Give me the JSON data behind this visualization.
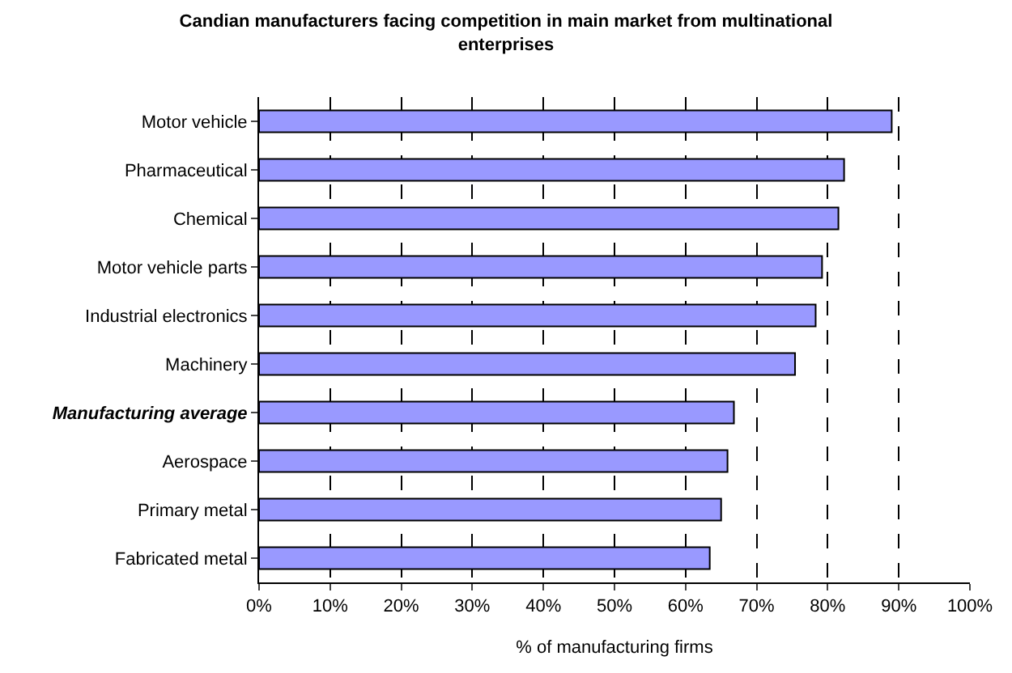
{
  "chart_data": {
    "type": "bar",
    "orientation": "horizontal",
    "title": "Candian manufacturers facing competition in main market from multinational enterprises",
    "xlabel": "% of manufacturing firms",
    "categories": [
      "Motor vehicle",
      "Pharmaceutical",
      "Chemical",
      "Motor vehicle parts",
      "Industrial electronics",
      "Machinery",
      "Manufacturing average",
      "Aerospace",
      "Primary metal",
      "Fabricated metal"
    ],
    "values": [
      89.0,
      82.3,
      81.5,
      79.2,
      78.3,
      75.4,
      66.8,
      65.9,
      65.0,
      63.4
    ],
    "color": "#9999ff",
    "xlim": [
      0,
      100
    ],
    "xticks": [
      {
        "value": 0,
        "label": "0%"
      },
      {
        "value": 10,
        "label": "10%"
      },
      {
        "value": 20,
        "label": "20%"
      },
      {
        "value": 30,
        "label": "30%"
      },
      {
        "value": 40,
        "label": "40%"
      },
      {
        "value": 50,
        "label": "50%"
      },
      {
        "value": 60,
        "label": "60%"
      },
      {
        "value": 70,
        "label": "70%"
      },
      {
        "value": 80,
        "label": "80%"
      },
      {
        "value": 90,
        "label": "90%"
      },
      {
        "value": 100,
        "label": "100%"
      }
    ],
    "grid": "x"
  }
}
